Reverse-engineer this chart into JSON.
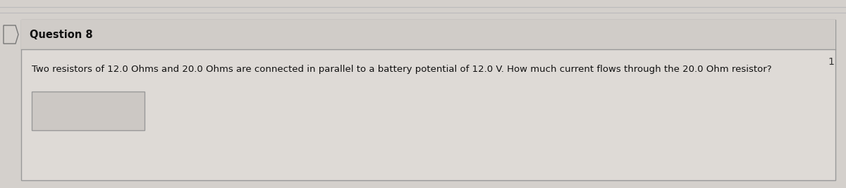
{
  "title": "Question 8",
  "question_text": "Two resistors of 12.0 Ohms and 20.0 Ohms are connected in parallel to a battery potential of 12.0 V. How much current flows through the 20.0 Ohm resistor?",
  "page_number": "1",
  "background_color": "#d4d0cc",
  "header_bg_color": "#d0ccc8",
  "body_bg_color": "#dedad6",
  "answer_box_color": "#ccc8c4",
  "border_color": "#999999",
  "header_text_color": "#111111",
  "question_text_color": "#111111",
  "page_num_color": "#333333",
  "title_fontsize": 10.5,
  "question_fontsize": 9.5,
  "page_num_fontsize": 10
}
